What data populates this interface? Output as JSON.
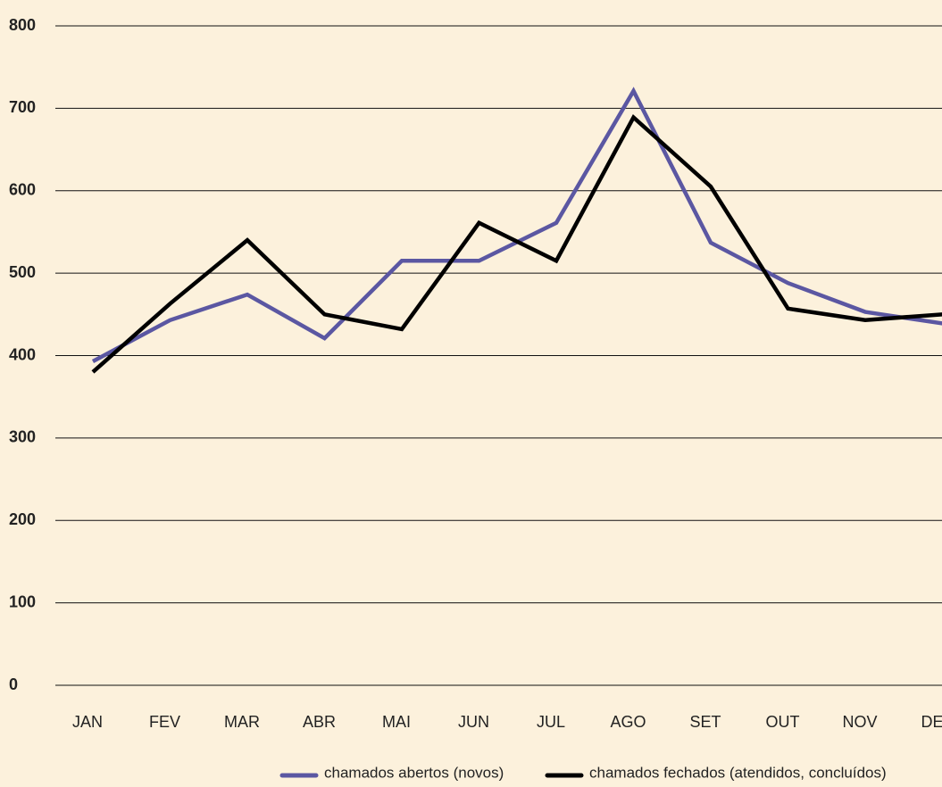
{
  "chart_data": {
    "type": "line",
    "categories": [
      "JAN",
      "FEV",
      "MAR",
      "ABR",
      "MAI",
      "JUN",
      "JUL",
      "AGO",
      "SET",
      "OUT",
      "NOV",
      "DEZ"
    ],
    "series": [
      {
        "name": "chamados abertos (novos)",
        "color": "#5b57a2",
        "values": [
          393,
          443,
          474,
          421,
          515,
          515,
          561,
          721,
          537,
          488,
          453,
          439
        ]
      },
      {
        "name": "chamados fechados (atendidos, concluídos)",
        "color": "#000000",
        "values": [
          380,
          463,
          540,
          450,
          432,
          561,
          515,
          689,
          605,
          457,
          443,
          450
        ]
      }
    ],
    "ylim": [
      0,
      800
    ],
    "yticks": [
      0,
      100,
      200,
      300,
      400,
      500,
      600,
      700,
      800
    ],
    "grid": true,
    "legend": "bottom"
  }
}
